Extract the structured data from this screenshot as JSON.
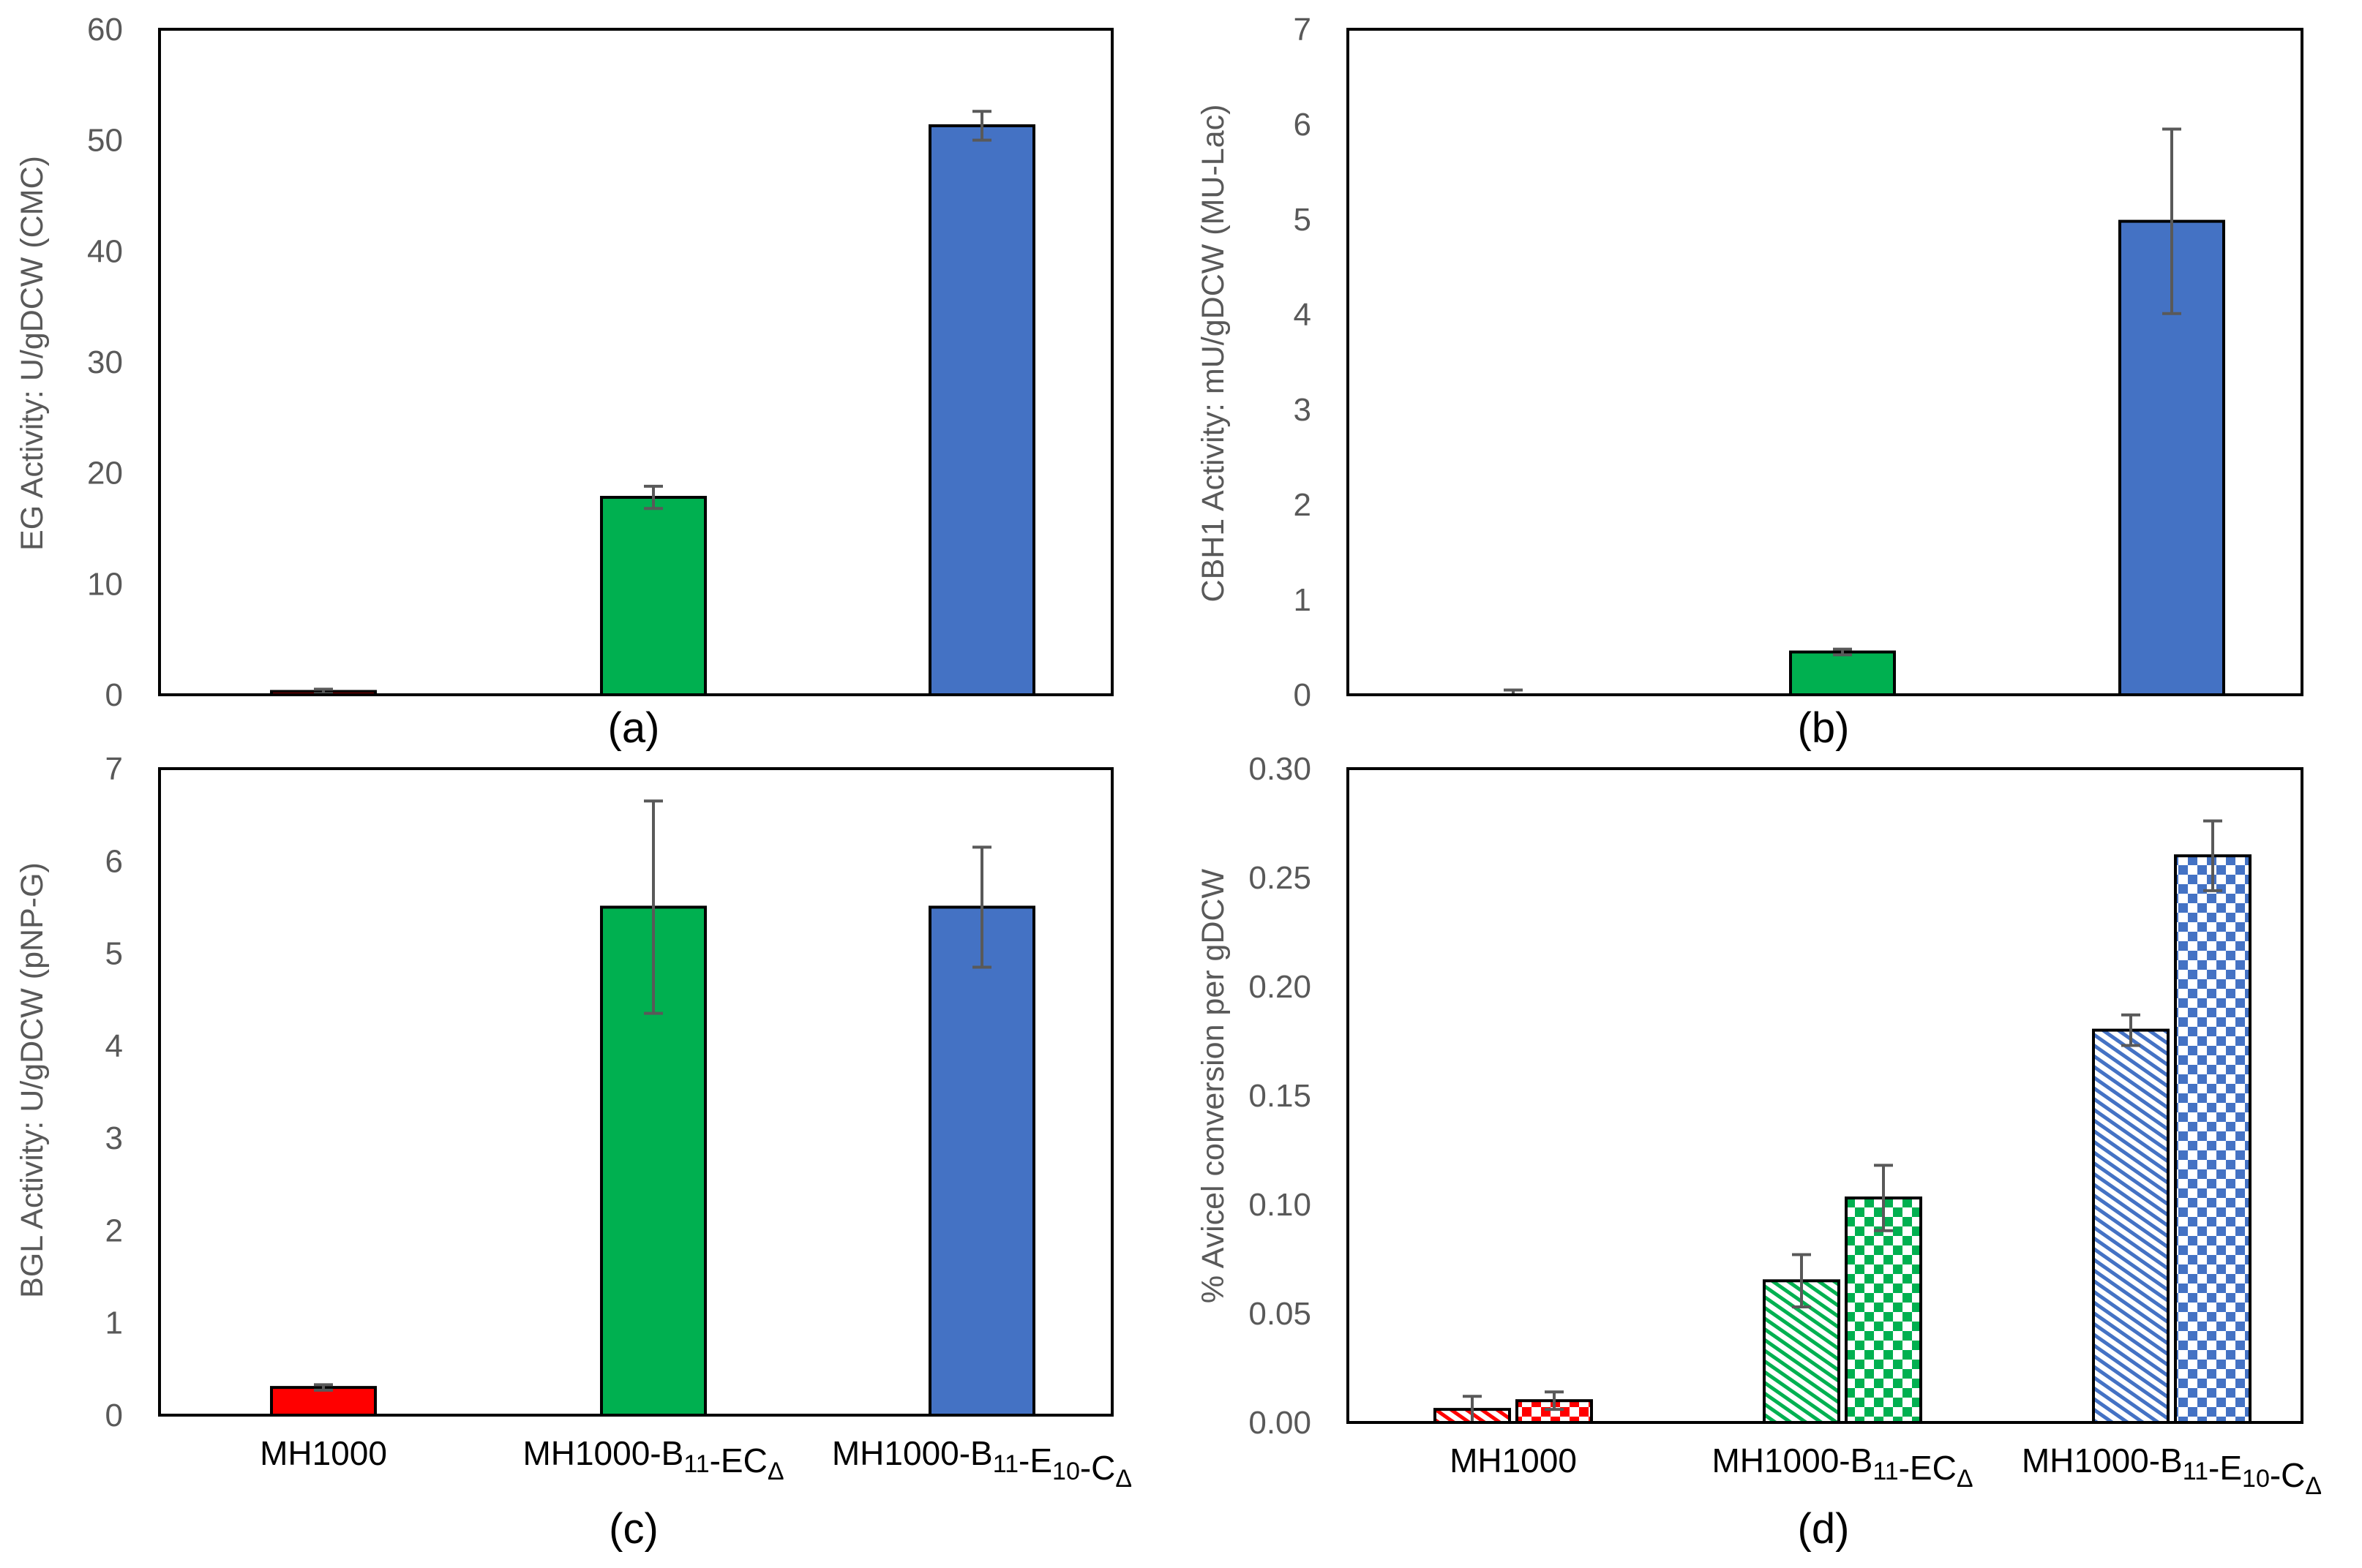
{
  "figure": {
    "colors": {
      "red": "#ff0000",
      "green": "#00b050",
      "blue": "#4472c4",
      "axis_text": "#595959",
      "error_bar": "#595959",
      "frame": "#000000"
    },
    "category_labels": [
      {
        "base": "MH1000",
        "parts": [
          {
            "t": "MH1000",
            "s": ""
          }
        ]
      },
      {
        "base": "MH1000-B11-ECΔ",
        "parts": [
          {
            "t": "MH1000-B",
            "s": ""
          },
          {
            "t": "11",
            "s": "sub"
          },
          {
            "t": "-EC",
            "s": ""
          },
          {
            "t": "Δ",
            "s": "sub"
          }
        ]
      },
      {
        "base": "MH1000-B11-E10-CΔ",
        "parts": [
          {
            "t": "MH1000-B",
            "s": ""
          },
          {
            "t": "11",
            "s": "sub"
          },
          {
            "t": "-E",
            "s": ""
          },
          {
            "t": "10",
            "s": "sub"
          },
          {
            "t": "-C",
            "s": ""
          },
          {
            "t": "Δ",
            "s": "sub"
          }
        ]
      }
    ]
  },
  "chart_data": [
    {
      "id": "a",
      "panel_label": "(a)",
      "type": "bar",
      "title": "",
      "xlabel": "",
      "ylabel": "EG Activity: U/gDCW (CMC)",
      "ylim": [
        0,
        60
      ],
      "yticks": [
        "0",
        "10",
        "20",
        "30",
        "40",
        "50",
        "60"
      ],
      "show_category_labels": false,
      "categories": [
        "MH1000",
        "MH1000-B11-ECΔ",
        "MH1000-B11-E10-CΔ"
      ],
      "values": [
        0.3,
        17.8,
        51.3
      ],
      "errors": [
        0.2,
        1.0,
        1.3
      ],
      "bar_colors": [
        "#ff0000",
        "#00b050",
        "#4472c4"
      ],
      "grid": false
    },
    {
      "id": "b",
      "panel_label": "(b)",
      "type": "bar",
      "title": "",
      "xlabel": "",
      "ylabel": "CBH1 Activity: mU/gDCW (MU-Lac)",
      "ylim": [
        0,
        7
      ],
      "yticks": [
        "0",
        "1",
        "2",
        "3",
        "4",
        "5",
        "6",
        "7"
      ],
      "show_category_labels": false,
      "categories": [
        "MH1000",
        "MH1000-B11-ECΔ",
        "MH1000-B11-E10-CΔ"
      ],
      "values": [
        0.0,
        0.45,
        4.98
      ],
      "errors": [
        0.05,
        0.03,
        0.97
      ],
      "bar_colors": [
        "#ff0000",
        "#00b050",
        "#4472c4"
      ],
      "grid": false
    },
    {
      "id": "c",
      "panel_label": "(c)",
      "type": "bar",
      "title": "",
      "xlabel": "",
      "ylabel": "BGL Activity: U/gDCW (pNP-G)",
      "ylim": [
        0,
        7
      ],
      "yticks": [
        "0",
        "1",
        "2",
        "3",
        "4",
        "5",
        "6",
        "7"
      ],
      "show_category_labels": true,
      "categories": [
        "MH1000",
        "MH1000-B11-ECΔ",
        "MH1000-B11-E10-CΔ"
      ],
      "values": [
        0.3,
        5.5,
        5.5
      ],
      "errors": [
        0.03,
        1.15,
        0.65
      ],
      "bar_colors": [
        "#ff0000",
        "#00b050",
        "#4472c4"
      ],
      "grid": false
    },
    {
      "id": "d",
      "panel_label": "(d)",
      "type": "bar",
      "title": "",
      "xlabel": "",
      "ylabel": "% Avicel conversion per gDCW",
      "ylim": [
        0,
        0.3
      ],
      "yticks": [
        "0.00",
        "0.05",
        "0.10",
        "0.15",
        "0.20",
        "0.25",
        "0.30"
      ],
      "show_category_labels": true,
      "categories": [
        "MH1000",
        "MH1000-B11-ECΔ",
        "MH1000-B11-E10-CΔ"
      ],
      "series": [
        {
          "name": "hatched",
          "pattern": "diagonal",
          "values": [
            0.006,
            0.065,
            0.18
          ],
          "errors": [
            0.006,
            0.012,
            0.007
          ]
        },
        {
          "name": "checkered",
          "pattern": "checker",
          "values": [
            0.01,
            0.103,
            0.26
          ],
          "errors": [
            0.004,
            0.015,
            0.016
          ]
        }
      ],
      "bar_colors": [
        "#ff0000",
        "#00b050",
        "#4472c4"
      ],
      "grid": false
    }
  ]
}
